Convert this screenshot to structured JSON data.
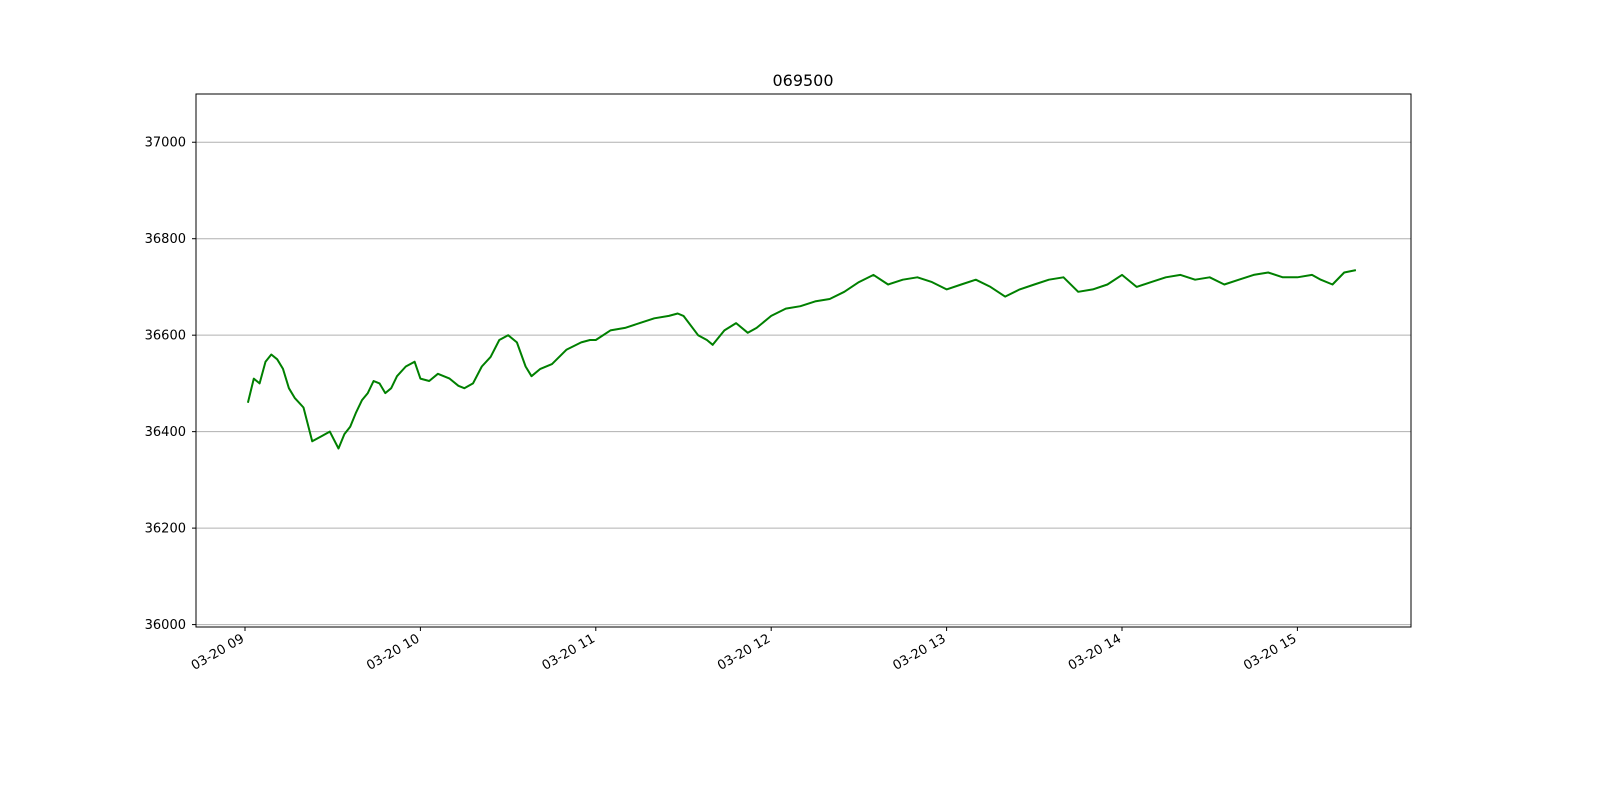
{
  "chart_data": {
    "type": "line",
    "title": "069500",
    "xlabel": "",
    "ylabel": "",
    "ylim": [
      35995,
      37100
    ],
    "grid": "horizontal",
    "legend": "none",
    "x_tick_labels": [
      "03-20 09",
      "03-20 10",
      "03-20 11",
      "03-20 12",
      "03-20 13",
      "03-20 14",
      "03-20 15"
    ],
    "y_ticks": [
      36000,
      36200,
      36400,
      36600,
      36800,
      37000
    ],
    "y_tick_labels": [
      "36000",
      "36200",
      "36400",
      "36600",
      "36800",
      "37000"
    ],
    "series": [
      {
        "color": "#008000",
        "x": [
          "09:01",
          "09:03",
          "09:05",
          "09:07",
          "09:09",
          "09:11",
          "09:13",
          "09:15",
          "09:17",
          "09:20",
          "09:23",
          "09:26",
          "09:29",
          "09:32",
          "09:34",
          "09:36",
          "09:38",
          "09:40",
          "09:42",
          "09:44",
          "09:46",
          "09:48",
          "09:50",
          "09:52",
          "09:55",
          "09:58",
          "10:00",
          "10:03",
          "10:06",
          "10:10",
          "10:13",
          "10:15",
          "10:18",
          "10:21",
          "10:24",
          "10:27",
          "10:30",
          "10:33",
          "10:36",
          "10:38",
          "10:41",
          "10:45",
          "10:50",
          "10:55",
          "10:58",
          "11:00",
          "11:05",
          "11:10",
          "11:15",
          "11:20",
          "11:25",
          "11:28",
          "11:30",
          "11:35",
          "11:38",
          "11:40",
          "11:44",
          "11:48",
          "11:52",
          "11:55",
          "12:00",
          "12:05",
          "12:10",
          "12:15",
          "12:20",
          "12:25",
          "12:30",
          "12:35",
          "12:40",
          "12:45",
          "12:50",
          "12:55",
          "13:00",
          "13:05",
          "13:10",
          "13:15",
          "13:20",
          "13:25",
          "13:30",
          "13:35",
          "13:40",
          "13:45",
          "13:50",
          "13:55",
          "14:00",
          "14:05",
          "14:10",
          "14:15",
          "14:20",
          "14:25",
          "14:30",
          "14:35",
          "14:40",
          "14:45",
          "14:50",
          "14:55",
          "15:00",
          "15:05",
          "15:08",
          "15:12",
          "15:16",
          "15:20"
        ],
        "values": [
          36460,
          36510,
          36500,
          36545,
          36560,
          36550,
          36530,
          36490,
          36470,
          36450,
          36380,
          36390,
          36400,
          36365,
          36395,
          36410,
          36440,
          36465,
          36480,
          36505,
          36500,
          36480,
          36490,
          36515,
          36535,
          36545,
          36510,
          36505,
          36520,
          36510,
          36495,
          36490,
          36500,
          36535,
          36555,
          36590,
          36600,
          36585,
          36535,
          36515,
          36530,
          36540,
          36570,
          36585,
          36590,
          36590,
          36610,
          36615,
          36625,
          36635,
          36640,
          36645,
          36640,
          36600,
          36590,
          36580,
          36610,
          36625,
          36605,
          36615,
          36640,
          36655,
          36660,
          36670,
          36675,
          36690,
          36710,
          36725,
          36705,
          36715,
          36720,
          36710,
          36695,
          36705,
          36715,
          36700,
          36680,
          36695,
          36705,
          36715,
          36720,
          36690,
          36695,
          36705,
          36725,
          36700,
          36710,
          36720,
          36725,
          36715,
          36720,
          36705,
          36715,
          36725,
          36730,
          36720,
          36720,
          36725,
          36715,
          36705,
          36730,
          36735
        ]
      }
    ]
  }
}
